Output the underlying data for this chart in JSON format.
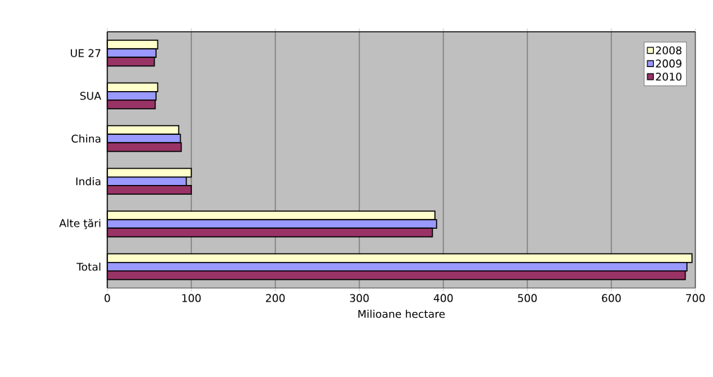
{
  "chart_data": {
    "type": "bar",
    "orientation": "horizontal",
    "xlabel": "Milioane hectare",
    "categories": [
      "UE 27",
      "SUA",
      "China",
      "India",
      "Alte ţări",
      "Total"
    ],
    "series": [
      {
        "name": "2008",
        "color": "#ffffcc",
        "values": [
          60,
          60,
          85,
          100,
          390,
          696
        ]
      },
      {
        "name": "2009",
        "color": "#9999ff",
        "values": [
          58,
          58,
          87,
          94,
          392,
          690
        ]
      },
      {
        "name": "2010",
        "color": "#993366",
        "values": [
          56,
          57,
          88,
          100,
          387,
          688
        ]
      }
    ],
    "xlim": [
      0,
      700
    ],
    "xticks": [
      0,
      100,
      200,
      300,
      400,
      500,
      600,
      700
    ],
    "grid": "x",
    "legend": "top right"
  }
}
